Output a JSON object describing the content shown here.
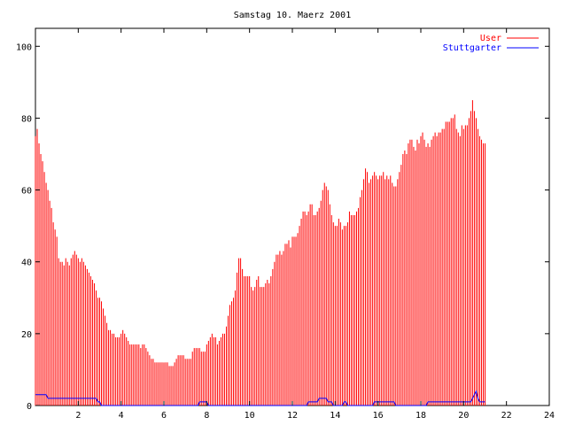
{
  "chart_data": {
    "type": "bar",
    "title": "Samstag 10. Maerz 2001",
    "xlabel": "",
    "ylabel": "",
    "xlim": [
      0,
      24
    ],
    "ylim": [
      0,
      105
    ],
    "x_ticks": [
      2,
      4,
      6,
      8,
      10,
      12,
      14,
      16,
      18,
      20,
      22,
      24
    ],
    "y_ticks": [
      0,
      20,
      40,
      60,
      80,
      100
    ],
    "grid": false,
    "legend_position": "top-right",
    "samples_per_hour": 12,
    "series": [
      {
        "name": "User",
        "style": "impulses",
        "color": "#ff0000",
        "values": [
          75,
          77,
          73,
          70,
          68,
          65,
          62,
          60,
          57,
          55,
          51,
          49,
          47,
          41,
          40,
          40,
          39,
          41,
          40,
          39,
          41,
          42,
          43,
          42,
          41,
          40,
          41,
          40,
          39,
          38,
          37,
          36,
          35,
          34,
          32,
          30,
          30,
          29,
          27,
          25,
          23,
          21,
          21,
          20,
          20,
          19,
          19,
          19,
          20,
          21,
          20,
          19,
          18,
          17,
          17,
          17,
          17,
          17,
          17,
          16,
          17,
          17,
          16,
          15,
          14,
          13,
          13,
          12,
          12,
          12,
          12,
          12,
          12,
          12,
          12,
          11,
          11,
          11,
          12,
          13,
          14,
          14,
          14,
          14,
          13,
          13,
          13,
          13,
          15,
          16,
          16,
          16,
          16,
          15,
          15,
          15,
          17,
          18,
          19,
          20,
          19,
          19,
          17,
          18,
          19,
          20,
          20,
          22,
          25,
          28,
          29,
          30,
          32,
          37,
          41,
          41,
          38,
          36,
          36,
          36,
          36,
          33,
          32,
          33,
          35,
          36,
          33,
          33,
          33,
          34,
          35,
          34,
          36,
          38,
          40,
          42,
          42,
          43,
          42,
          43,
          45,
          45,
          46,
          44,
          47,
          47,
          47,
          48,
          50,
          52,
          54,
          54,
          53,
          54,
          56,
          56,
          53,
          53,
          54,
          55,
          57,
          60,
          62,
          61,
          60,
          56,
          53,
          51,
          50,
          50,
          52,
          51,
          49,
          50,
          50,
          51,
          54,
          53,
          53,
          53,
          54,
          55,
          58,
          60,
          63,
          66,
          65,
          62,
          63,
          64,
          65,
          64,
          63,
          64,
          64,
          65,
          63,
          64,
          63,
          64,
          62,
          61,
          61,
          63,
          65,
          67,
          70,
          71,
          70,
          73,
          74,
          74,
          72,
          71,
          74,
          73,
          75,
          76,
          74,
          72,
          73,
          72,
          74,
          75,
          76,
          75,
          76,
          76,
          77,
          77,
          79,
          79,
          79,
          80,
          80,
          81,
          77,
          76,
          75,
          78,
          77,
          78,
          78,
          80,
          82,
          85,
          82,
          80,
          77,
          75,
          74,
          73,
          73
        ]
      },
      {
        "name": "Stuttgarter",
        "style": "lines",
        "color": "#0000ff",
        "values": [
          3,
          3,
          3,
          3,
          3,
          3,
          3,
          2,
          2,
          2,
          2,
          2,
          2,
          2,
          2,
          2,
          2,
          2,
          2,
          2,
          2,
          2,
          2,
          2,
          2,
          2,
          2,
          2,
          2,
          2,
          2,
          2,
          2,
          2,
          2,
          1,
          1,
          0,
          0,
          0,
          0,
          0,
          0,
          0,
          0,
          0,
          0,
          0,
          0,
          0,
          0,
          0,
          0,
          0,
          0,
          0,
          0,
          0,
          0,
          0,
          0,
          0,
          0,
          0,
          0,
          0,
          0,
          0,
          0,
          0,
          0,
          0,
          0,
          0,
          0,
          0,
          0,
          0,
          0,
          0,
          0,
          0,
          0,
          0,
          0,
          0,
          0,
          0,
          0,
          0,
          0,
          0,
          1,
          1,
          1,
          1,
          1,
          0,
          0,
          0,
          0,
          0,
          0,
          0,
          0,
          0,
          0,
          0,
          0,
          0,
          0,
          0,
          0,
          0,
          0,
          0,
          0,
          0,
          0,
          0,
          0,
          0,
          0,
          0,
          0,
          0,
          0,
          0,
          0,
          0,
          0,
          0,
          0,
          0,
          0,
          0,
          0,
          0,
          0,
          0,
          0,
          0,
          0,
          0,
          0,
          0,
          0,
          0,
          0,
          0,
          0,
          0,
          0,
          1,
          1,
          1,
          1,
          1,
          1,
          2,
          2,
          2,
          2,
          2,
          1,
          1,
          1,
          0,
          0,
          0,
          0,
          0,
          0,
          1,
          1,
          0,
          0,
          0,
          0,
          0,
          0,
          0,
          0,
          0,
          0,
          0,
          0,
          0,
          0,
          0,
          1,
          1,
          1,
          1,
          1,
          1,
          1,
          1,
          1,
          1,
          1,
          1,
          0,
          0,
          0,
          0,
          0,
          0,
          0,
          0,
          0,
          0,
          0,
          0,
          0,
          0,
          0,
          0,
          0,
          0,
          1,
          1,
          1,
          1,
          1,
          1,
          1,
          1,
          1,
          1,
          1,
          1,
          1,
          1,
          1,
          1,
          1,
          1,
          1,
          1,
          1,
          1,
          1,
          1,
          1,
          2,
          3,
          4,
          2,
          1,
          1,
          1,
          1
        ]
      }
    ]
  }
}
